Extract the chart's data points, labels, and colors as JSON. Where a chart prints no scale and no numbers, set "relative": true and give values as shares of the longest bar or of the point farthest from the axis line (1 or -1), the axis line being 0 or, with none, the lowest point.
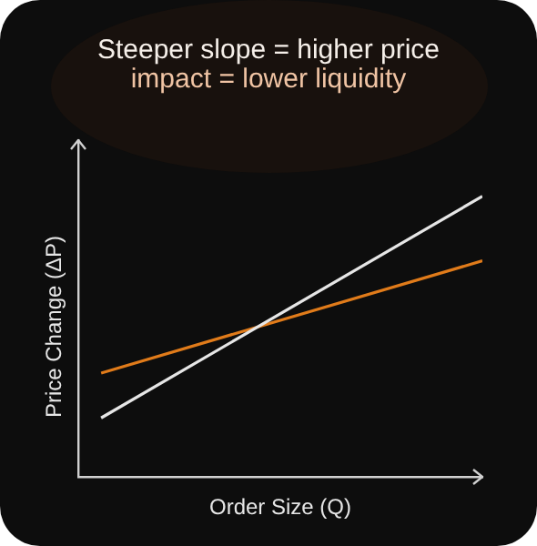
{
  "chart_data": {
    "type": "line",
    "title": "Steeper slope = higher price",
    "subtitle": "impact = lower liquidity",
    "xlabel": "Order Size (Q)",
    "ylabel": "Price Change (ΔP)",
    "relative": true,
    "categories": [
      null,
      null
    ],
    "series": [
      {
        "color": "#e6e6e6",
        "values": [
          0.21,
          1
        ]
      },
      {
        "color": "#e07b1a",
        "values": [
          0.37,
          0.77
        ]
      }
    ]
  }
}
